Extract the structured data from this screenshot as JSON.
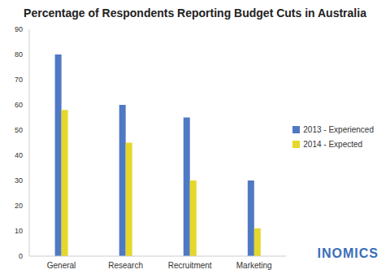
{
  "chart_data": {
    "type": "bar",
    "title": "Percentage of Respondents Reporting Budget Cuts in Australia",
    "categories": [
      "General",
      "Research",
      "Recruitment",
      "Marketing"
    ],
    "series": [
      {
        "name": "2013 - Experienced",
        "color": "#4f79c4",
        "values": [
          80,
          60,
          55,
          30
        ]
      },
      {
        "name": "2014 - Expected",
        "color": "#e5d829",
        "values": [
          58,
          45,
          30,
          11
        ]
      }
    ],
    "ylim": [
      0,
      90
    ],
    "yticks": [
      0,
      10,
      20,
      30,
      40,
      50,
      60,
      70,
      80,
      90
    ],
    "grid": false,
    "legend": "right",
    "annotations": [
      "INOMICS"
    ]
  }
}
